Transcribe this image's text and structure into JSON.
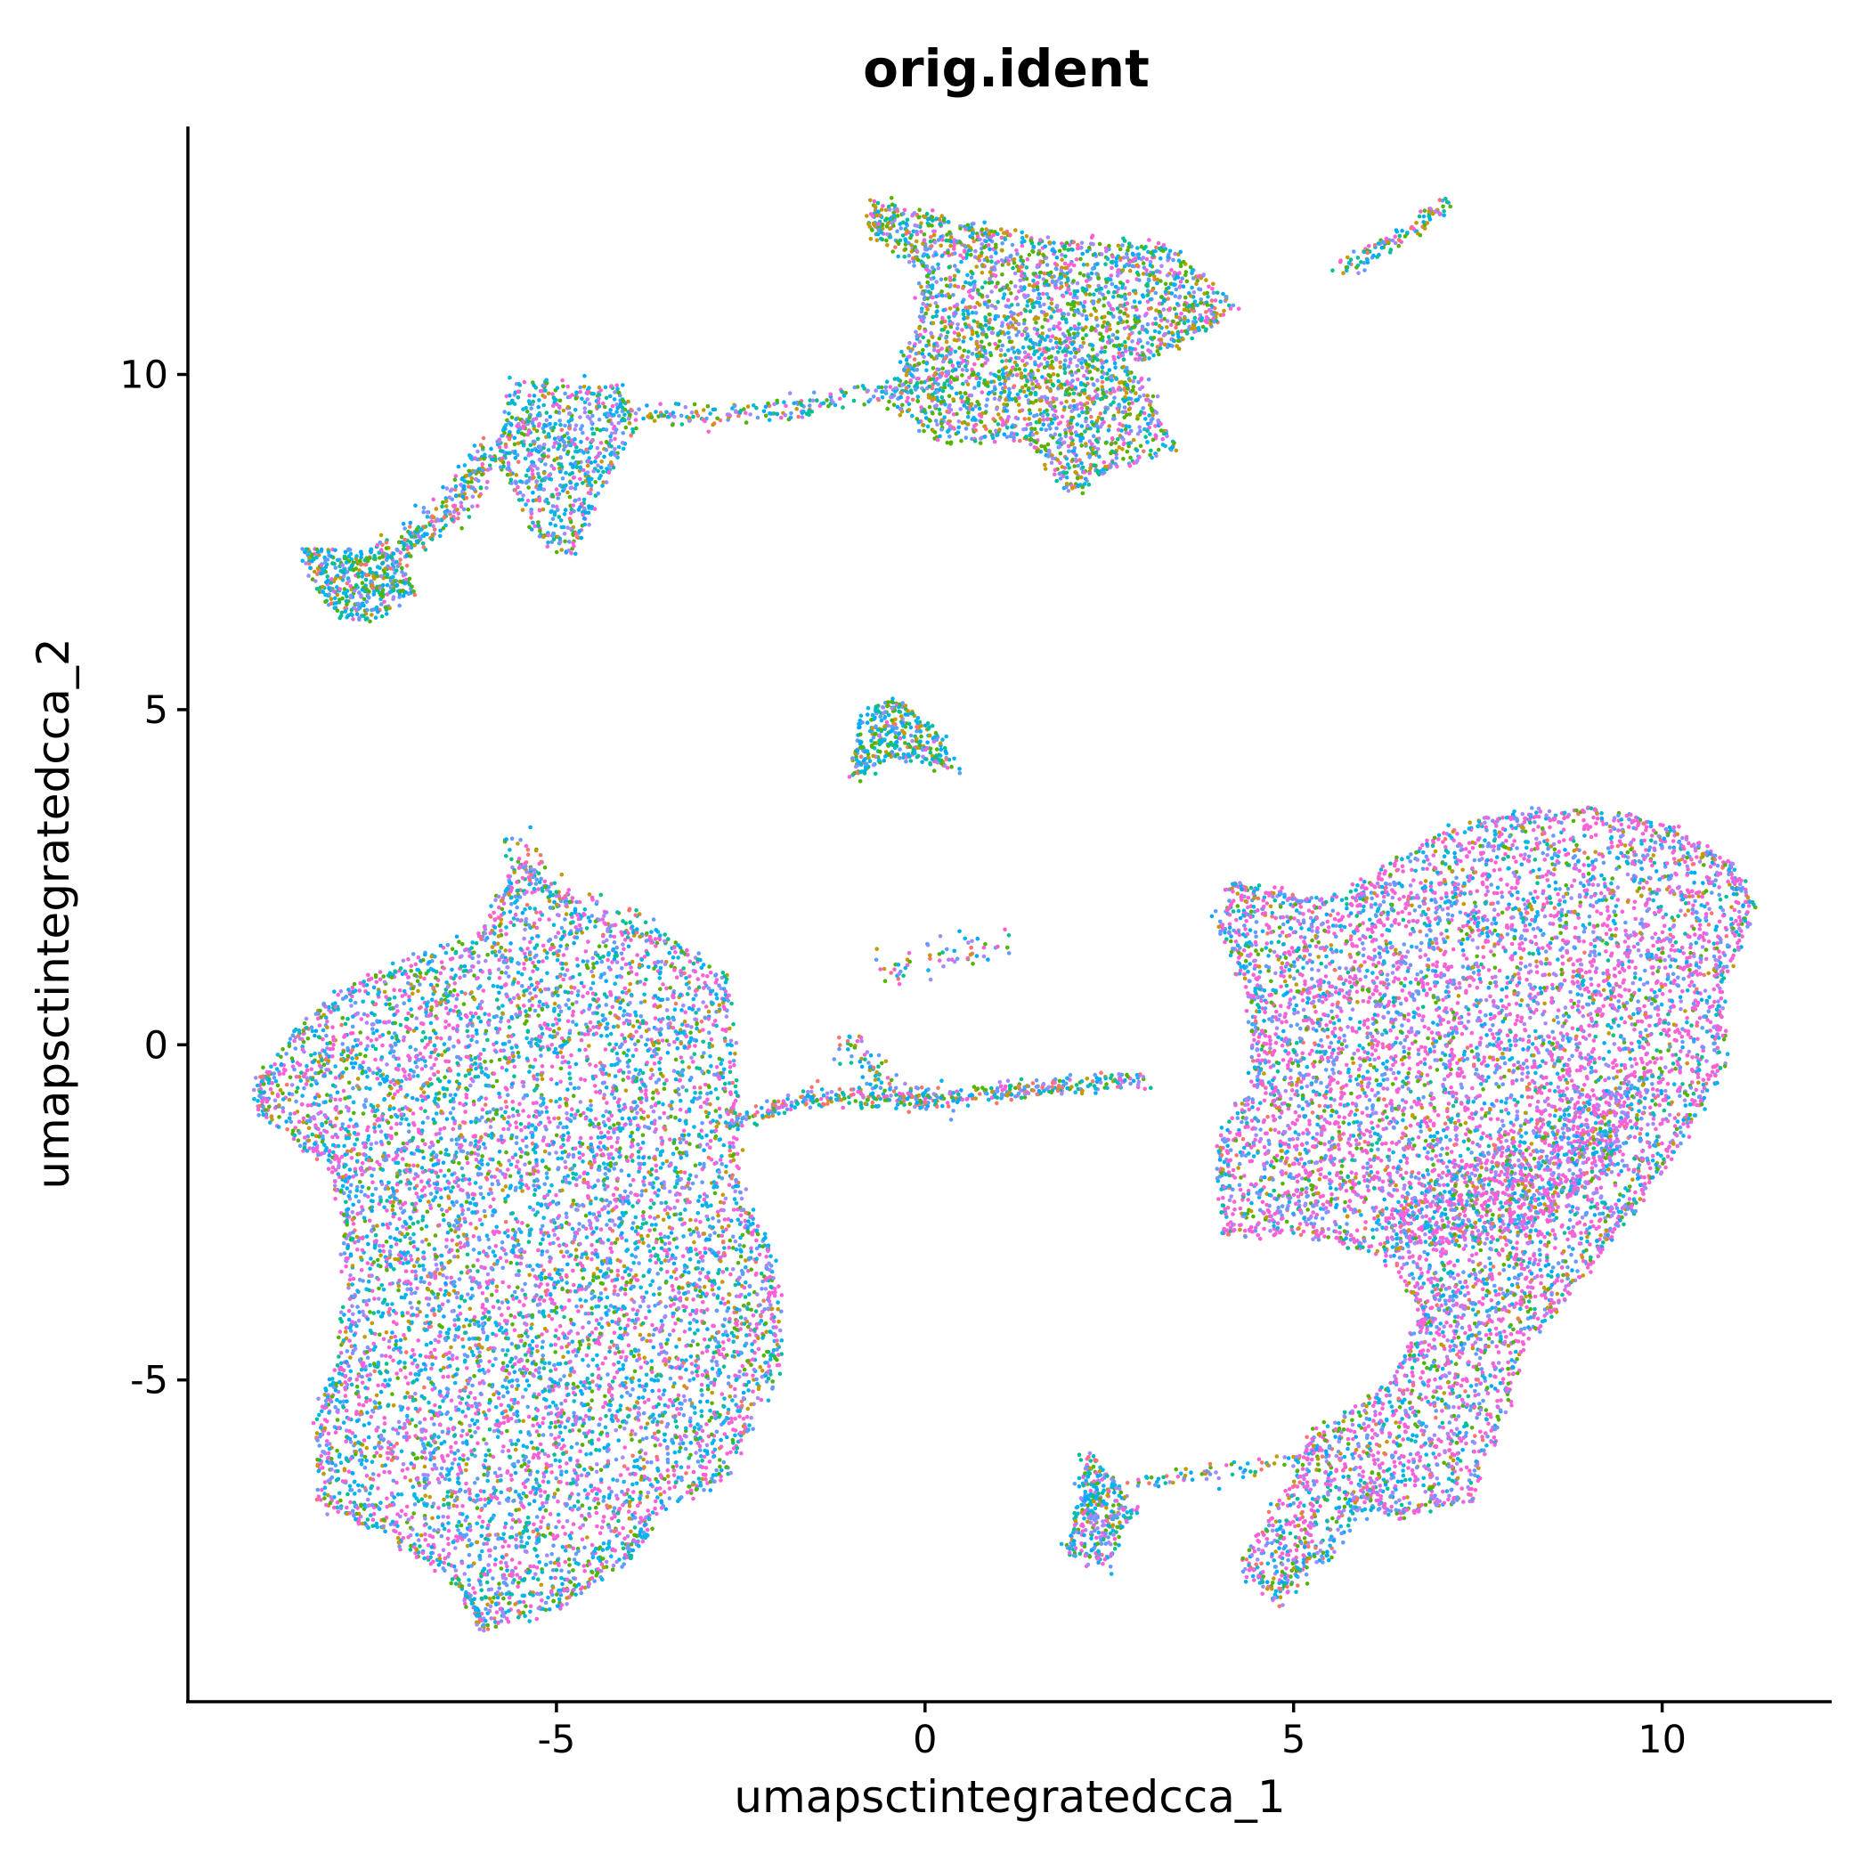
{
  "chart_data": {
    "type": "scatter",
    "title": "orig.ident",
    "xlabel": "umapsctintegratedcca_1",
    "ylabel": "umapsctintegratedcca_2",
    "xlim": [
      -10,
      12.3
    ],
    "ylim": [
      -9.8,
      13.7
    ],
    "x_ticks": [
      {
        "value": -5,
        "label": "-5"
      },
      {
        "value": 0,
        "label": "0"
      },
      {
        "value": 5,
        "label": "5"
      },
      {
        "value": 10,
        "label": "10"
      }
    ],
    "y_ticks": [
      {
        "value": -5,
        "label": "-5"
      },
      {
        "value": 0,
        "label": "0"
      },
      {
        "value": 5,
        "label": "5"
      },
      {
        "value": 10,
        "label": "10"
      }
    ],
    "grid": false,
    "legend": "none",
    "series_colors": [
      "#F8766D",
      "#C49A00",
      "#53B400",
      "#00C094",
      "#00B6EB",
      "#A58AFF",
      "#FB61D7",
      "#619CFF",
      "#00A9FF"
    ],
    "clusters": [
      {
        "polygon": [
          [
            -9.0,
            -0.5
          ],
          [
            -8.2,
            0.5
          ],
          [
            -7.3,
            1.1
          ],
          [
            -6.0,
            1.6
          ],
          [
            -5.5,
            2.7
          ],
          [
            -4.6,
            1.9
          ],
          [
            -3.6,
            1.6
          ],
          [
            -2.7,
            1.0
          ],
          [
            -2.6,
            -0.9
          ],
          [
            -2.5,
            -2.4
          ],
          [
            -2.1,
            -3.2
          ],
          [
            -2.0,
            -4.8
          ],
          [
            -2.7,
            -6.4
          ],
          [
            -3.7,
            -7.0
          ],
          [
            -4.0,
            -7.6
          ],
          [
            -4.9,
            -8.3
          ],
          [
            -6.0,
            -8.7
          ],
          [
            -6.4,
            -7.9
          ],
          [
            -7.3,
            -7.3
          ],
          [
            -8.2,
            -6.8
          ],
          [
            -8.2,
            -5.5
          ],
          [
            -7.9,
            -4.7
          ],
          [
            -7.8,
            -3.0
          ],
          [
            -8.0,
            -1.8
          ],
          [
            -9.0,
            -1.0
          ]
        ],
        "n": 7200,
        "weights": [
          1,
          3,
          4,
          3,
          9,
          4,
          13,
          6,
          3
        ]
      },
      {
        "polygon": [
          [
            4.2,
            2.4
          ],
          [
            5.5,
            2.1
          ],
          [
            6.8,
            3.0
          ],
          [
            7.8,
            3.4
          ],
          [
            9.0,
            3.5
          ],
          [
            10.0,
            3.3
          ],
          [
            10.9,
            2.7
          ],
          [
            11.2,
            2.0
          ],
          [
            10.8,
            1.0
          ],
          [
            10.8,
            -0.4
          ],
          [
            10.0,
            -1.8
          ],
          [
            9.2,
            -3.0
          ],
          [
            8.1,
            -4.6
          ],
          [
            7.4,
            -6.8
          ],
          [
            6.4,
            -7.0
          ],
          [
            5.5,
            -6.6
          ],
          [
            4.8,
            -8.2
          ],
          [
            4.3,
            -7.8
          ],
          [
            5.3,
            -5.8
          ],
          [
            6.3,
            -5.1
          ],
          [
            6.8,
            -4.1
          ],
          [
            6.3,
            -3.1
          ],
          [
            5.2,
            -2.8
          ],
          [
            4.1,
            -2.8
          ],
          [
            4.0,
            -1.6
          ],
          [
            4.5,
            -0.5
          ],
          [
            4.4,
            0.9
          ],
          [
            4.0,
            1.8
          ]
        ],
        "n": 7200,
        "weights": [
          1,
          2,
          3,
          2,
          5,
          4,
          18,
          6,
          2
        ]
      },
      {
        "polygon": [
          [
            6.1,
            -2.6
          ],
          [
            8.3,
            -1.1
          ],
          [
            9.8,
            -0.4
          ],
          [
            9.2,
            -1.9
          ],
          [
            8.0,
            -2.9
          ],
          [
            6.8,
            -3.0
          ]
        ],
        "n": 600,
        "weights": [
          1,
          2,
          3,
          2,
          5,
          4,
          18,
          6,
          2
        ]
      },
      {
        "polygon": [
          [
            -0.7,
            12.6
          ],
          [
            0.6,
            12.2
          ],
          [
            1.7,
            12.0
          ],
          [
            3.3,
            11.9
          ],
          [
            4.2,
            11.0
          ],
          [
            3.5,
            10.5
          ],
          [
            2.8,
            10.2
          ],
          [
            3.4,
            8.9
          ],
          [
            2.5,
            8.6
          ],
          [
            2.0,
            8.3
          ],
          [
            1.3,
            9.1
          ],
          [
            0.3,
            9.0
          ],
          [
            -0.5,
            9.6
          ],
          [
            -0.1,
            10.6
          ],
          [
            0.0,
            11.6
          ],
          [
            -0.7,
            12.1
          ]
        ],
        "n": 2600,
        "weights": [
          1,
          4,
          6,
          3,
          4,
          4,
          5,
          4,
          2
        ]
      },
      {
        "polygon": [
          [
            -5.6,
            9.9
          ],
          [
            -4.2,
            9.8
          ],
          [
            -3.9,
            9.2
          ],
          [
            -4.4,
            8.3
          ],
          [
            -4.8,
            7.3
          ],
          [
            -5.3,
            7.6
          ],
          [
            -5.8,
            8.8
          ]
        ],
        "n": 650,
        "weights": [
          1,
          2,
          3,
          3,
          6,
          3,
          4,
          4,
          3
        ]
      },
      {
        "polygon": [
          [
            -8.5,
            7.4
          ],
          [
            -7.3,
            7.4
          ],
          [
            -6.9,
            6.8
          ],
          [
            -7.5,
            6.3
          ],
          [
            -8.1,
            6.5
          ]
        ],
        "n": 380,
        "weights": [
          1,
          3,
          4,
          4,
          5,
          2,
          2,
          4,
          3
        ]
      },
      {
        "polygon": [
          [
            -0.9,
            4.9
          ],
          [
            -0.4,
            5.2
          ],
          [
            0.2,
            4.6
          ],
          [
            0.4,
            4.1
          ],
          [
            -0.4,
            4.3
          ],
          [
            -1.0,
            4.0
          ]
        ],
        "n": 320,
        "weights": [
          1,
          3,
          5,
          4,
          5,
          1,
          1,
          3,
          3
        ]
      },
      {
        "polygon": [
          [
            2.2,
            -6.0
          ],
          [
            2.9,
            -6.9
          ],
          [
            2.7,
            -7.2
          ],
          [
            2.5,
            -7.8
          ],
          [
            1.9,
            -7.5
          ],
          [
            2.1,
            -6.7
          ]
        ],
        "n": 300,
        "weights": [
          1,
          2,
          3,
          3,
          5,
          3,
          6,
          4,
          3
        ]
      }
    ],
    "trails": [
      {
        "points": [
          [
            -4.0,
            9.4
          ],
          [
            -2.4,
            9.4
          ],
          [
            0.0,
            9.8
          ],
          [
            0.6,
            10.2
          ]
        ],
        "n": 220,
        "spread": 0.09
      },
      {
        "points": [
          [
            -5.9,
            8.9
          ],
          [
            -6.4,
            8.0
          ],
          [
            -7.2,
            7.3
          ]
        ],
        "n": 250,
        "spread": 0.12
      },
      {
        "points": [
          [
            -2.7,
            -1.2
          ],
          [
            -1.6,
            -0.8
          ],
          [
            0.0,
            -0.8
          ],
          [
            2.2,
            -0.6
          ],
          [
            3.0,
            -0.5
          ]
        ],
        "n": 420,
        "spread": 0.07
      },
      {
        "points": [
          [
            -1.1,
            0.1
          ],
          [
            -0.6,
            -0.6
          ],
          [
            0.2,
            -0.9
          ]
        ],
        "n": 90,
        "spread": 0.12
      },
      {
        "points": [
          [
            -0.6,
            1.1
          ],
          [
            0.3,
            1.4
          ],
          [
            1.1,
            1.5
          ]
        ],
        "n": 60,
        "spread": 0.12
      },
      {
        "points": [
          [
            5.6,
            11.6
          ],
          [
            6.6,
            12.1
          ],
          [
            7.1,
            12.6
          ]
        ],
        "n": 110,
        "spread": 0.07
      },
      {
        "points": [
          [
            2.4,
            -6.6
          ],
          [
            3.6,
            -6.4
          ],
          [
            4.7,
            -6.3
          ],
          [
            5.6,
            -6.1
          ]
        ],
        "n": 80,
        "spread": 0.07
      },
      {
        "points": [
          [
            6.1,
            -6.5
          ],
          [
            5.5,
            -7.3
          ],
          [
            4.8,
            -8.2
          ]
        ],
        "n": 160,
        "spread": 0.12
      },
      {
        "points": [
          [
            -3.6,
            1.7
          ],
          [
            -5.0,
            2.2
          ],
          [
            -5.6,
            3.2
          ]
        ],
        "n": 90,
        "spread": 0.12
      }
    ]
  }
}
